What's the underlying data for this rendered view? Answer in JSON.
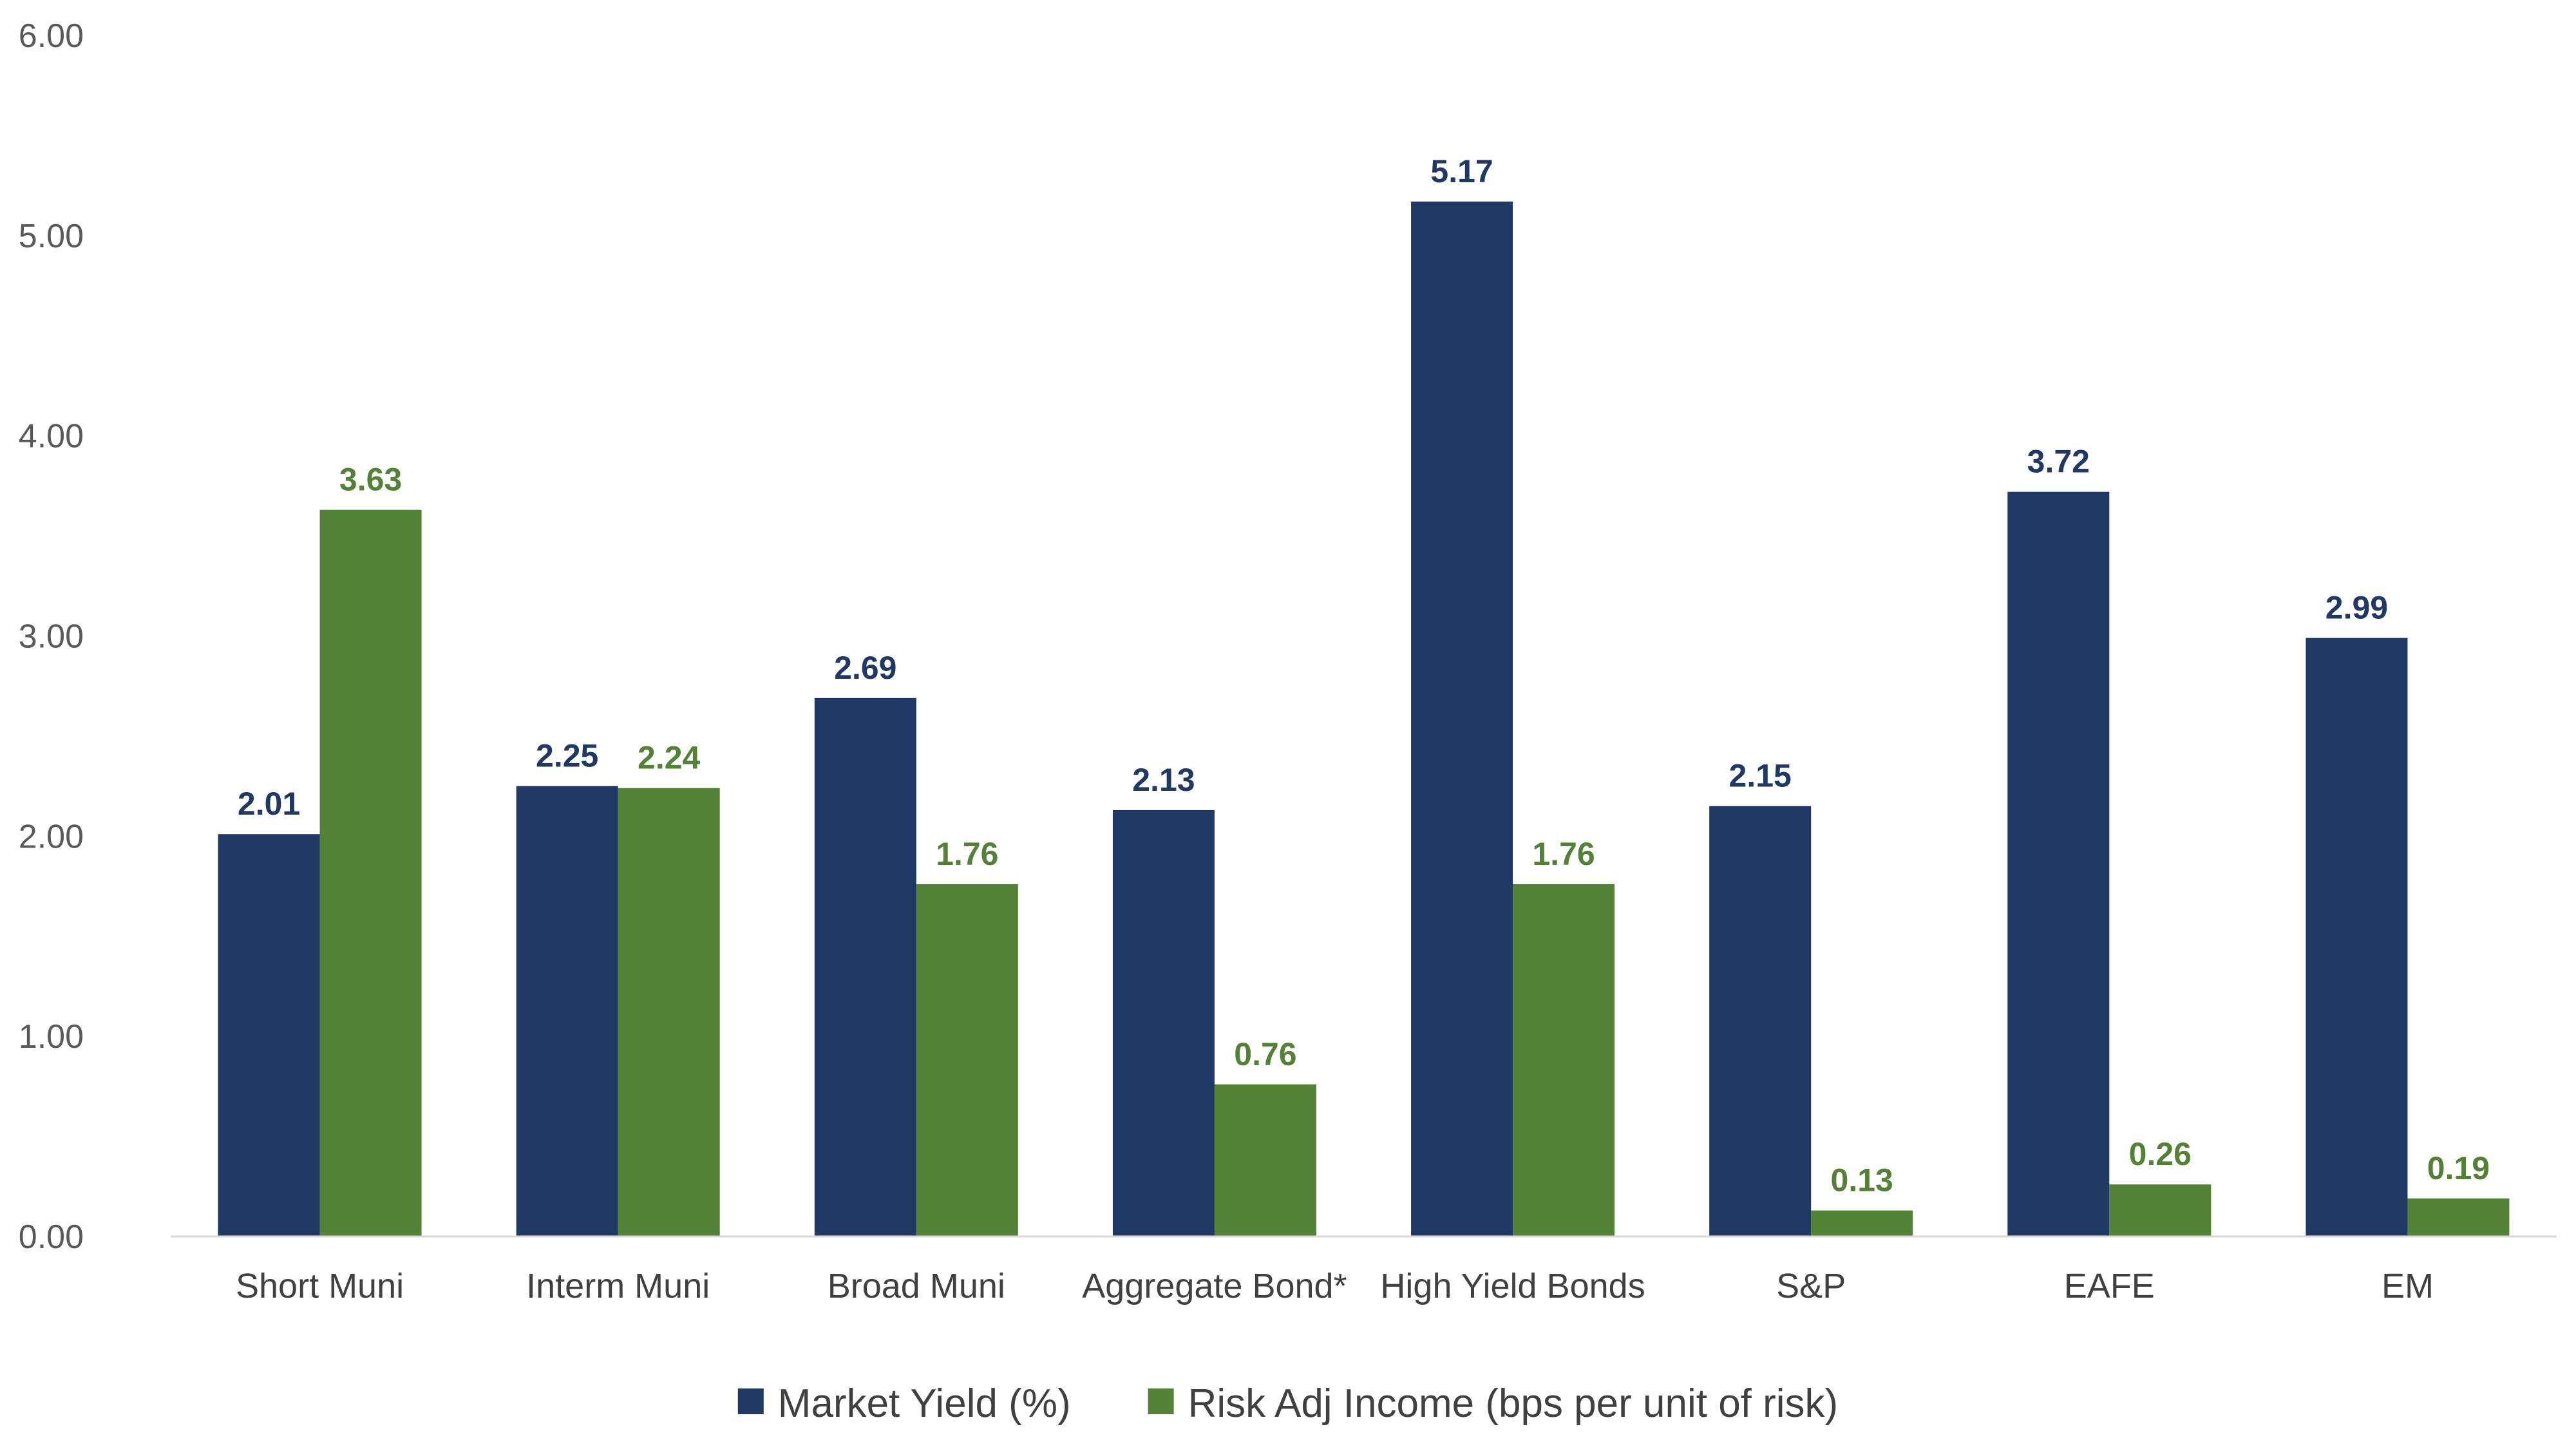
{
  "chart_data": {
    "type": "bar",
    "categories": [
      "Short Muni",
      "Interm Muni",
      "Broad Muni",
      "Aggregate Bond*",
      "High Yield Bonds",
      "S&P",
      "EAFE",
      "EM"
    ],
    "series": [
      {
        "name": "Market Yield (%)",
        "color": "#1f3864",
        "values": [
          2.01,
          2.25,
          2.69,
          2.13,
          5.17,
          2.15,
          3.72,
          2.99
        ],
        "labels": [
          "2.01",
          "2.25",
          "2.69",
          "2.13",
          "5.17",
          "2.15",
          "3.72",
          "2.99"
        ]
      },
      {
        "name": "Risk Adj Income (bps per unit of risk)",
        "color": "#538135",
        "values": [
          3.63,
          2.24,
          1.76,
          0.76,
          1.76,
          0.13,
          0.26,
          0.19
        ],
        "labels": [
          "3.63",
          "2.24",
          "1.76",
          "0.76",
          "1.76",
          "0.13",
          "0.26",
          "0.19"
        ]
      }
    ],
    "ylim": [
      0,
      6
    ],
    "yticks": [
      "0.00",
      "1.00",
      "2.00",
      "3.00",
      "4.00",
      "5.00",
      "6.00"
    ],
    "grid": false,
    "legend_position": "bottom"
  }
}
